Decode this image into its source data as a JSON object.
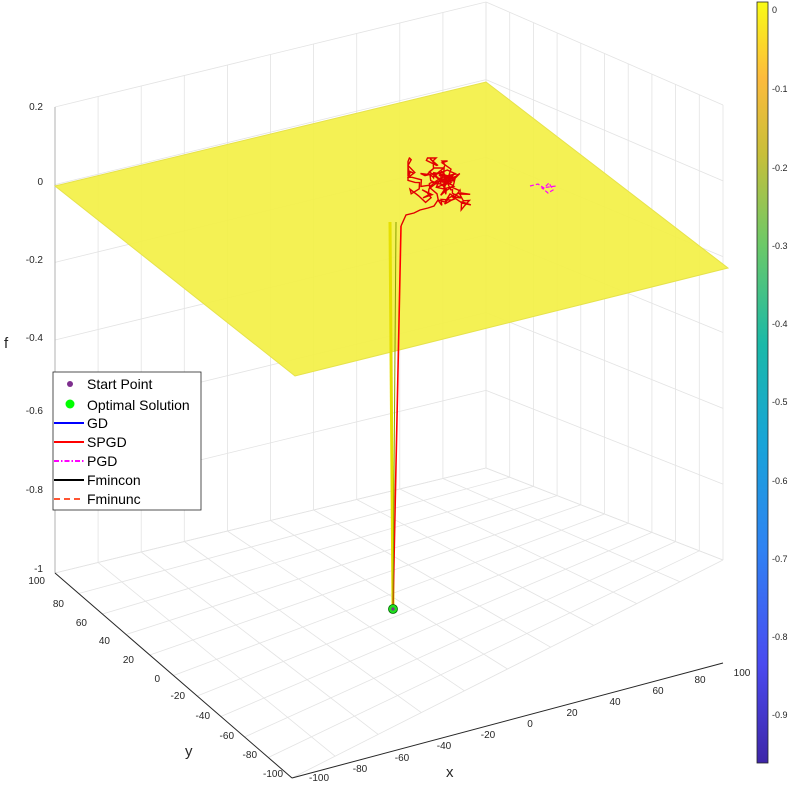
{
  "chart_data": {
    "type": "surface3d",
    "zlabel": "f",
    "xlabel": "x",
    "ylabel": "y",
    "x_ticks": [
      "-100",
      "-80",
      "-60",
      "-40",
      "-20",
      "0",
      "20",
      "40",
      "60",
      "80",
      "100"
    ],
    "y_ticks": [
      "-100",
      "-80",
      "-60",
      "-40",
      "-20",
      "0",
      "20",
      "40",
      "60",
      "80",
      "100"
    ],
    "z_ticks": [
      "-1",
      "-0.8",
      "-0.6",
      "-0.4",
      "-0.2",
      "0",
      "0.2"
    ],
    "xlim": [
      -100,
      100
    ],
    "ylim": [
      -100,
      100
    ],
    "zlim": [
      -1,
      0.2
    ],
    "grid": true,
    "surface": {
      "description_value": 0,
      "color": "#f3f047"
    },
    "colorbar": {
      "ticks": [
        "0",
        "-0.1",
        "-0.2",
        "-0.3",
        "-0.4",
        "-0.5",
        "-0.6",
        "-0.7",
        "-0.8",
        "-0.9"
      ],
      "range": [
        -0.97,
        0.01
      ]
    },
    "legend": {
      "placement": "middle-left",
      "entries": [
        {
          "label": "Start Point",
          "style": "marker",
          "color": "#7e2f8e"
        },
        {
          "label": "Optimal Solution",
          "style": "marker",
          "color": "#00ff00"
        },
        {
          "label": "GD",
          "style": "solid",
          "color": "#0000ff"
        },
        {
          "label": "SPGD",
          "style": "solid",
          "color": "#ff0000"
        },
        {
          "label": "PGD",
          "style": "dashdot",
          "color": "#ff00ff"
        },
        {
          "label": "Fmincon",
          "style": "solid",
          "color": "#000000"
        },
        {
          "label": "Fminunc",
          "style": "dashed",
          "color": "#ff5533"
        }
      ]
    },
    "optimal_solution": {
      "x": -29,
      "y": 8,
      "z": -1
    },
    "start_point": {
      "x": -29,
      "y": 8,
      "z": 0
    }
  }
}
